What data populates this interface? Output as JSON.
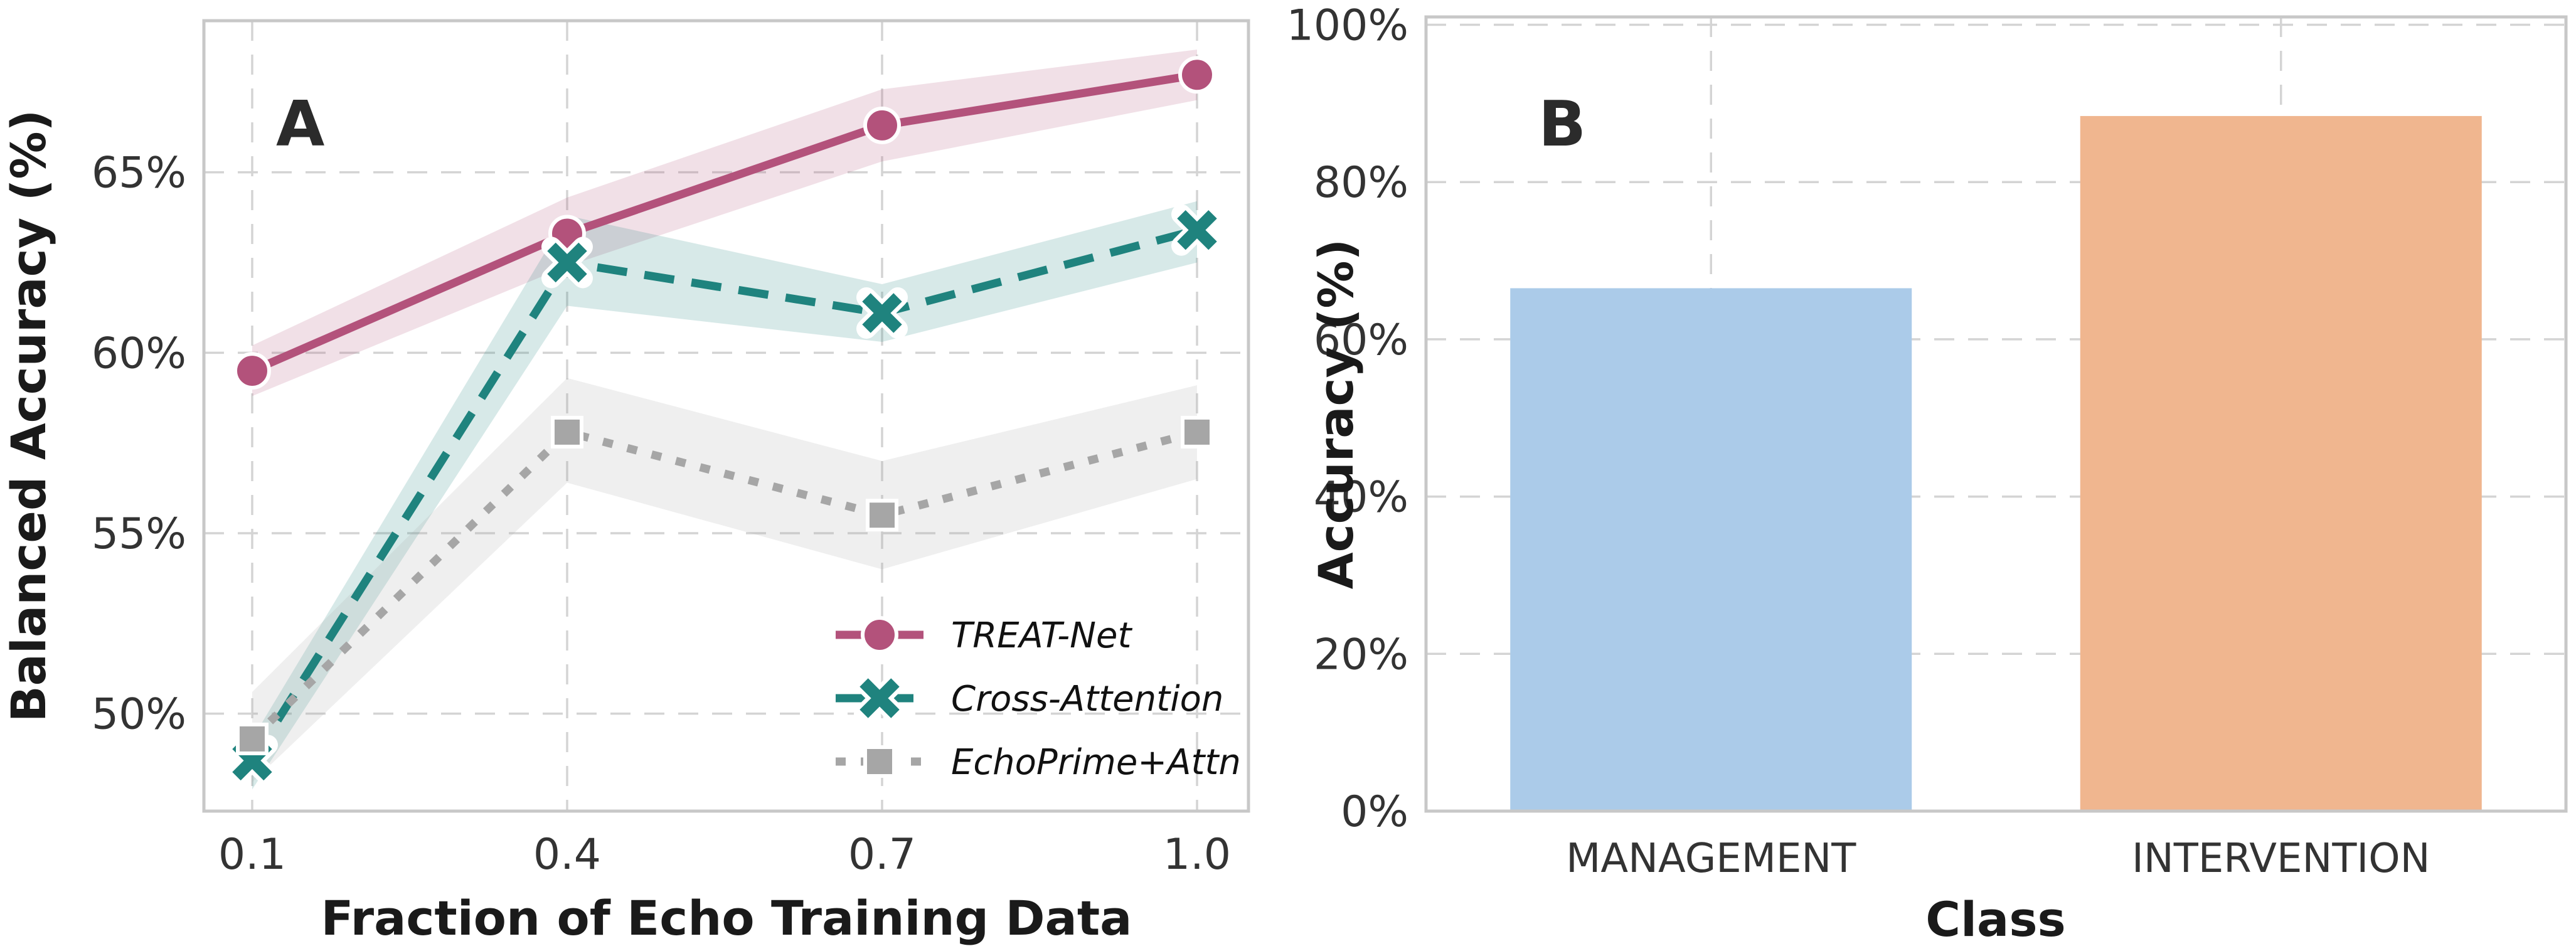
{
  "figure": {
    "background": "#ffffff",
    "spine_color": "#c8c8c8",
    "grid_color": "#d4d4d4"
  },
  "chart_data": [
    {
      "type": "line",
      "panel_label": "A",
      "xlabel": "Fraction of Echo Training Data",
      "ylabel": "Balanced Accuracy (%)",
      "x": [
        0.1,
        0.4,
        0.7,
        1.0
      ],
      "xtick_labels": [
        "0.1",
        "0.4",
        "0.7",
        "1.0"
      ],
      "ytick_values": [
        50,
        55,
        60,
        65
      ],
      "ytick_labels": [
        "50%",
        "55%",
        "60%",
        "65%"
      ],
      "xlim": [
        0.054,
        1.049
      ],
      "ylim": [
        47.3,
        69.2
      ],
      "grid": true,
      "legend_position": "lower-right-inside",
      "series": [
        {
          "name": "TREAT-Net",
          "color": "#b3527b",
          "line_style": "solid",
          "marker": "circle",
          "values": [
            59.5,
            63.3,
            66.3,
            67.7
          ],
          "band_upper": [
            60.2,
            64.3,
            67.3,
            68.4
          ],
          "band_lower": [
            58.8,
            62.4,
            65.3,
            67.0
          ]
        },
        {
          "name": "Cross-Attention",
          "color": "#1f837e",
          "line_style": "dashed",
          "marker": "x",
          "values": [
            48.7,
            62.5,
            61.1,
            63.4
          ],
          "band_upper": [
            49.3,
            63.8,
            61.9,
            64.2
          ],
          "band_lower": [
            47.9,
            61.3,
            60.3,
            62.5
          ]
        },
        {
          "name": "EchoPrime+Attn",
          "color": "#a6a6a6",
          "line_style": "dotted",
          "marker": "square",
          "values": [
            49.3,
            57.8,
            55.5,
            57.8
          ],
          "band_upper": [
            50.6,
            59.3,
            57.0,
            59.1
          ],
          "band_lower": [
            48.1,
            56.4,
            54.0,
            56.5
          ]
        }
      ]
    },
    {
      "type": "bar",
      "panel_label": "B",
      "xlabel": "Class",
      "ylabel": "Accuracy (%)",
      "categories": [
        "MANAGEMENT",
        "INTERVENTION"
      ],
      "values": [
        66.5,
        88.4
      ],
      "bar_colors": [
        "#abcbe9",
        "#f0b68f"
      ],
      "ytick_values": [
        0,
        20,
        40,
        60,
        80,
        100
      ],
      "ytick_labels": [
        "0%",
        "20%",
        "40%",
        "60%",
        "80%",
        "100%"
      ],
      "ylim": [
        0,
        101
      ],
      "grid": true
    }
  ]
}
